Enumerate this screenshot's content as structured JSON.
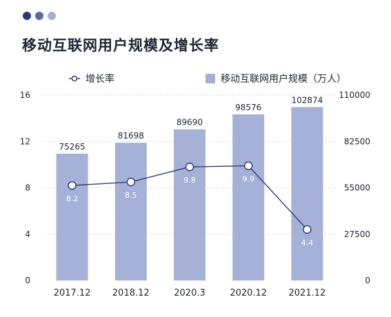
{
  "header": {
    "title": "移动互联网用户规模及增长率",
    "dot_colors": [
      "#2e3a78",
      "#5b6aa8",
      "#a4b0d8"
    ]
  },
  "legend": {
    "line_label": "增长率",
    "bar_label": "移动互联网用户规模（万人）"
  },
  "colors": {
    "bar": "#a5b1d6",
    "line": "#2d3a7a",
    "marker_fill": "#ffffff",
    "text": "#1f2430",
    "line_label": "#ffffff",
    "grid": "#c8c8c8"
  },
  "chart_data": {
    "type": "bar",
    "categories": [
      "2017.12",
      "2018.12",
      "2020.3",
      "2020.12",
      "2021.12"
    ],
    "series": [
      {
        "name": "移动互联网用户规模（万人）",
        "type": "bar",
        "axis": "right",
        "values": [
          75265,
          81698,
          89690,
          98576,
          102874
        ]
      },
      {
        "name": "增长率",
        "type": "line",
        "axis": "left",
        "values": [
          8.2,
          8.5,
          9.8,
          9.9,
          4.4
        ]
      }
    ],
    "y_left": {
      "ticks": [
        "0",
        "4",
        "8",
        "12",
        "16"
      ],
      "range": [
        0,
        16
      ]
    },
    "y_right": {
      "ticks": [
        "0",
        "27500",
        "55000",
        "82500",
        "110000"
      ],
      "range": [
        0,
        110000
      ]
    },
    "legend_position": "top",
    "grid": "dotted-horizontal"
  }
}
